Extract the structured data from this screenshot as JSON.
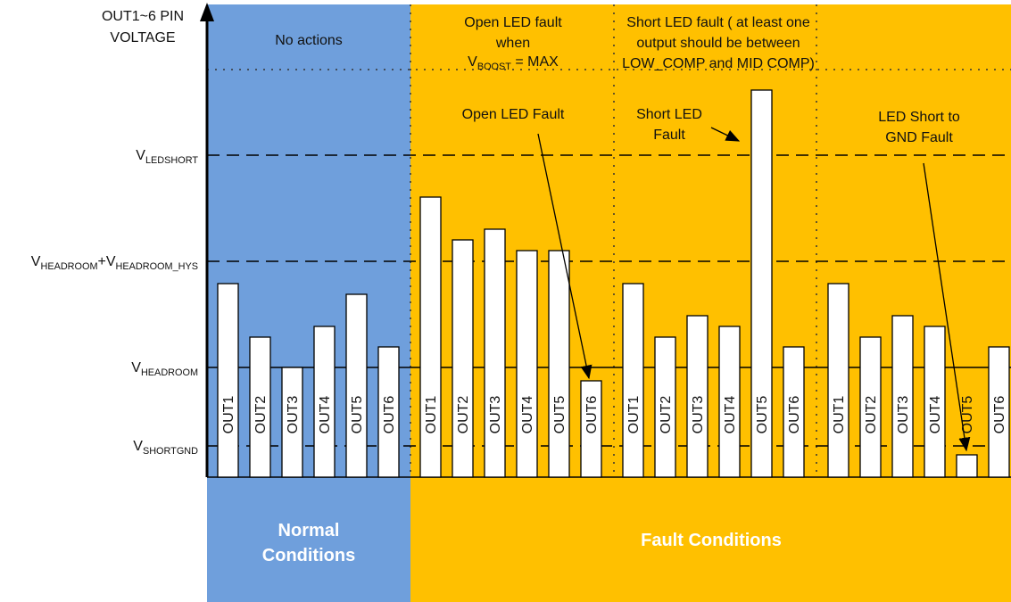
{
  "y_axis": {
    "title": [
      "OUT1~6 PIN",
      "VOLTAGE"
    ]
  },
  "levels": [
    {
      "parts": [
        {
          "text": "V"
        },
        {
          "text": "LEDSHORT",
          "sub": true
        }
      ]
    },
    {
      "parts": [
        {
          "text": "V"
        },
        {
          "text": "HEADROOM",
          "sub": true
        },
        {
          "text": "+"
        },
        {
          "text": "V"
        },
        {
          "text": "HEADROOM_HYS",
          "sub": true
        }
      ]
    },
    {
      "parts": [
        {
          "text": "V"
        },
        {
          "text": "HEADROOM",
          "sub": true
        }
      ]
    },
    {
      "parts": [
        {
          "text": "V"
        },
        {
          "text": "SHORTGND",
          "sub": true
        }
      ]
    }
  ],
  "notes": {
    "no_actions": "No actions",
    "open_fault": [
      "Open LED fault",
      "when"
    ],
    "open_fault_cond": [
      {
        "text": "V"
      },
      {
        "text": "BOOST",
        "sub": true
      },
      {
        "text": " = MAX"
      }
    ],
    "short_fault": [
      "Short LED fault ( at least one",
      "output should be between",
      "LOW_COMP and MID COMP)"
    ],
    "open_led_fault": "Open LED Fault",
    "short_led_fault": [
      "Short LED",
      "Fault"
    ],
    "short_gnd_fault": [
      "LED Short to",
      "GND Fault"
    ]
  },
  "groups": [
    {
      "bars": [
        "OUT1",
        "OUT2",
        "OUT3",
        "OUT4",
        "OUT5",
        "OUT6"
      ]
    },
    {
      "bars": [
        "OUT1",
        "OUT2",
        "OUT3",
        "OUT4",
        "OUT5",
        "OUT6"
      ]
    },
    {
      "bars": [
        "OUT1",
        "OUT2",
        "OUT3",
        "OUT4",
        "OUT5",
        "OUT6"
      ]
    },
    {
      "bars": [
        "OUT1",
        "OUT2",
        "OUT3",
        "OUT4",
        "OUT5",
        "OUT6"
      ]
    }
  ],
  "sections": {
    "normal": [
      "Normal",
      "Conditions"
    ],
    "fault": "Fault Conditions"
  }
}
